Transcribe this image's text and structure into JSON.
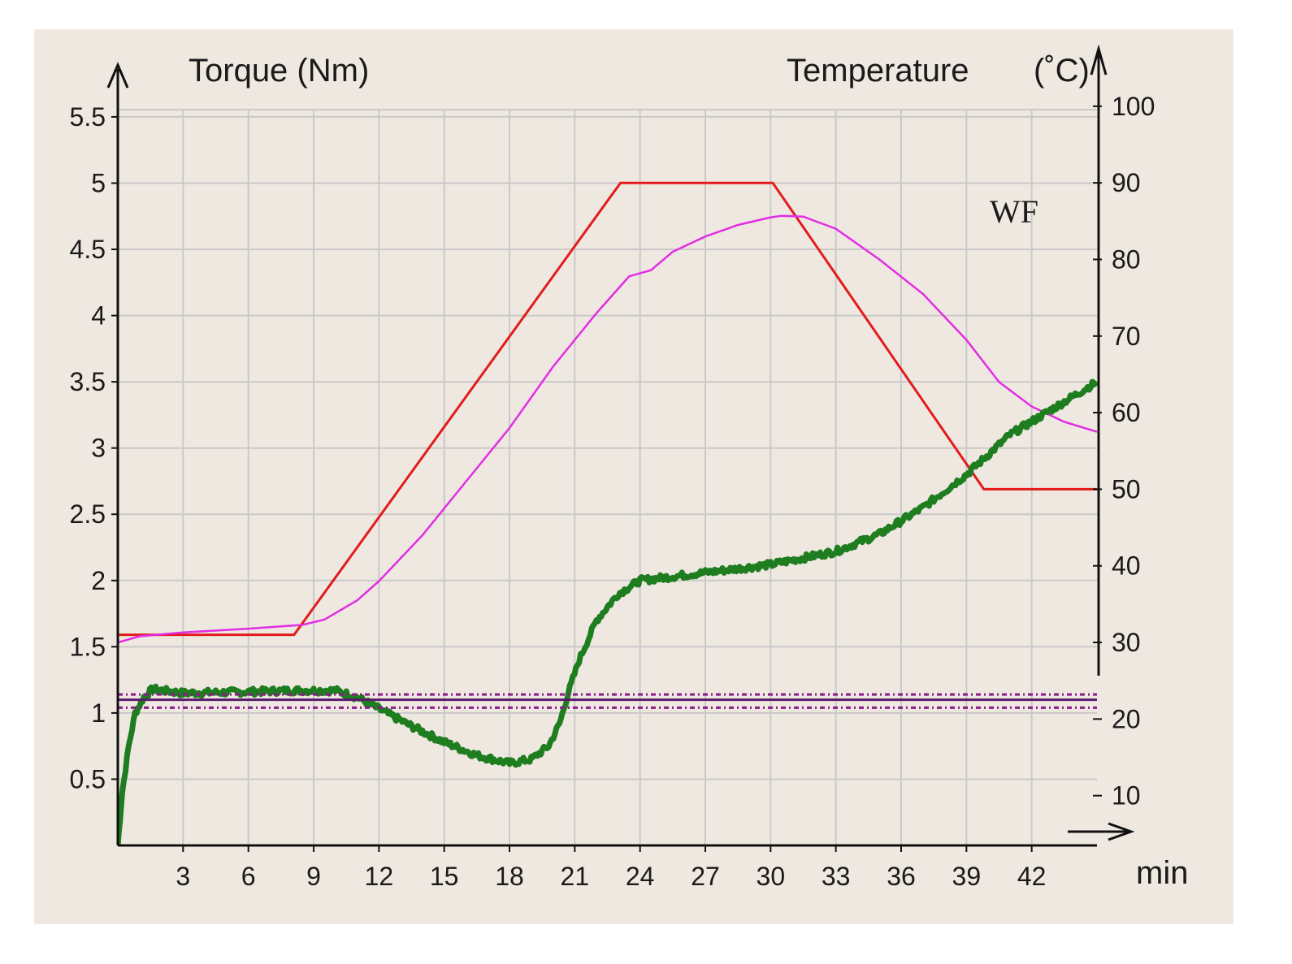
{
  "chart_data": {
    "type": "line",
    "title": "",
    "xlabel": "min",
    "ylabel_left": "Torque (Nm)",
    "ylabel_right_word": "Temperature",
    "ylabel_right_unit": "(˚C)",
    "annotation": "WF",
    "xlim": [
      0,
      45
    ],
    "ylim_left": [
      0,
      5.8
    ],
    "ylim_right": [
      3.5,
      103.8
    ],
    "x_ticks": [
      3,
      6,
      9,
      12,
      15,
      18,
      21,
      24,
      27,
      30,
      33,
      36,
      39,
      42
    ],
    "y_left_ticks": [
      0.5,
      1,
      1.5,
      2,
      2.5,
      3,
      3.5,
      4,
      4.5,
      5,
      5.5
    ],
    "y_left_tick_labels": [
      "0.5",
      "1",
      "1.5",
      "2",
      "2.5",
      "3",
      "3.5",
      "4",
      "4.5",
      "5",
      "5.5"
    ],
    "y_right_ticks": [
      10,
      20,
      30,
      40,
      50,
      60,
      70,
      80,
      90,
      100
    ],
    "grid": true,
    "background_color": "#efe8e1",
    "series": [
      {
        "axis": "right",
        "color": "#e21b1b",
        "x": [
          0,
          8.1,
          23.1,
          30.1,
          39.8,
          45
        ],
        "values": [
          31,
          31,
          90,
          90,
          50,
          50
        ]
      },
      {
        "axis": "right",
        "color": "#e32de3",
        "x": [
          0,
          1,
          3,
          6,
          8.5,
          9.5,
          11,
          12,
          14,
          16,
          18,
          20,
          22,
          23.5,
          24.5,
          25.5,
          27,
          28.5,
          30,
          30.5,
          31.5,
          33,
          35,
          37,
          39,
          40.5,
          42,
          43.5,
          45
        ],
        "values": [
          30,
          30.8,
          31.3,
          31.8,
          32.3,
          33,
          35.5,
          38,
          44,
          51,
          58,
          66,
          73,
          77.8,
          78.6,
          81,
          83,
          84.5,
          85.5,
          85.7,
          85.6,
          84,
          80,
          75.5,
          69.5,
          64,
          60.8,
          58.8,
          57.5
        ]
      },
      {
        "axis": "left",
        "color": "#1e7d1e",
        "x": [
          0,
          0.2,
          0.5,
          0.8,
          1.2,
          1.6,
          3,
          6,
          8,
          10,
          11,
          12,
          13.5,
          15,
          16.5,
          17.5,
          18,
          19,
          19.8,
          20.3,
          20.7,
          21.2,
          22,
          23,
          24,
          25,
          27,
          30,
          33,
          35,
          37,
          39,
          40,
          41,
          43,
          45
        ],
        "values": [
          0,
          0.4,
          0.75,
          1.0,
          1.12,
          1.18,
          1.15,
          1.16,
          1.17,
          1.17,
          1.12,
          1.03,
          0.9,
          0.78,
          0.68,
          0.64,
          0.62,
          0.65,
          0.75,
          0.92,
          1.15,
          1.4,
          1.7,
          1.9,
          2.0,
          2.02,
          2.06,
          2.12,
          2.22,
          2.35,
          2.55,
          2.8,
          2.95,
          3.1,
          3.3,
          3.5
        ]
      },
      {
        "axis": "left",
        "color": "#5a1a6e",
        "x": [
          0,
          45
        ],
        "values": [
          1.1,
          1.1
        ]
      },
      {
        "axis": "left",
        "color": "#8b1a8b",
        "x": [
          0,
          45
        ],
        "values": [
          1.14,
          1.14
        ]
      },
      {
        "axis": "left",
        "color": "#8b1a8b",
        "x": [
          0,
          45
        ],
        "values": [
          1.04,
          1.04
        ]
      }
    ]
  }
}
